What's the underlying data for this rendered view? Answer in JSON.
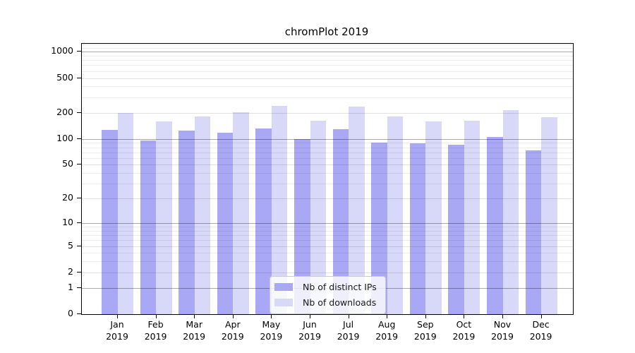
{
  "figure": {
    "background": "#ffffff"
  },
  "chart_data": {
    "type": "bar",
    "title": "chromPlot 2019",
    "months": [
      "Jan",
      "Feb",
      "Mar",
      "Apr",
      "May",
      "Jun",
      "Jul",
      "Aug",
      "Sep",
      "Oct",
      "Nov",
      "Dec"
    ],
    "year": "2019",
    "categories": [
      "Jan 2019",
      "Feb 2019",
      "Mar 2019",
      "Apr 2019",
      "May 2019",
      "Jun 2019",
      "Jul 2019",
      "Aug 2019",
      "Sep 2019",
      "Oct 2019",
      "Nov 2019",
      "Dec 2019"
    ],
    "series": [
      {
        "name": "Nb of distinct IPs",
        "color": "#a8a8f5",
        "values": [
          126,
          96,
          124,
          117,
          132,
          99,
          130,
          90,
          89,
          86,
          106,
          74
        ]
      },
      {
        "name": "Nb of downloads",
        "color": "#d8d8f8",
        "values": [
          200,
          159,
          182,
          203,
          239,
          161,
          234,
          180,
          158,
          162,
          214,
          176
        ]
      }
    ],
    "y_scale": "log10(value+1)",
    "y_ticks": [
      0,
      1,
      2,
      5,
      10,
      20,
      50,
      100,
      200,
      500,
      1000
    ],
    "y_major_ticks": [
      1,
      10,
      100,
      1000
    ],
    "y_minor_gridlines": [
      3,
      4,
      6,
      7,
      8,
      9,
      30,
      40,
      60,
      70,
      80,
      90,
      300,
      400,
      600,
      700,
      800,
      900,
      1100,
      1200
    ],
    "ylim": [
      0,
      1233
    ],
    "grid": true,
    "legend_position": "lower-center",
    "colors": {
      "grid_major": "#ababab",
      "grid_minor": "#ececec",
      "axis": "#000000",
      "legend_border": "#cbcbcb",
      "legend_bg": "rgba(255,255,255,0.8)"
    }
  }
}
